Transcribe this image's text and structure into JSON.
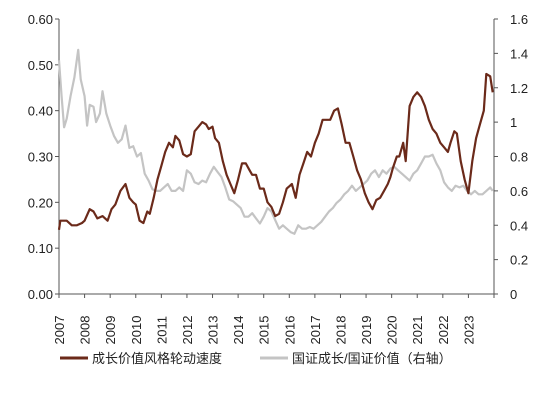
{
  "chart_data": {
    "type": "line",
    "title": "",
    "x_ticks": [
      "2007",
      "2008",
      "2009",
      "2010",
      "2011",
      "2012",
      "2013",
      "2014",
      "2015",
      "2016",
      "2017",
      "2018",
      "2019",
      "2020",
      "2021",
      "2022",
      "2023"
    ],
    "left_axis": {
      "ylim": [
        0,
        0.6
      ],
      "ticks": [
        "0.00",
        "0.10",
        "0.20",
        "0.30",
        "0.40",
        "0.50",
        "0.60"
      ]
    },
    "right_axis": {
      "ylim": [
        0,
        1.6
      ],
      "ticks": [
        "0",
        "0.2",
        "0.4",
        "0.6",
        "0.8",
        "1",
        "1.2",
        "1.4",
        "1.6"
      ]
    },
    "grid": false,
    "legend_position": "bottom",
    "series": [
      {
        "name": "成长价值风格轮动速度",
        "axis": "left",
        "color": "#6b2a1a",
        "x": [
          2007.0,
          2007.05,
          2007.1,
          2007.3,
          2007.5,
          2007.7,
          2007.9,
          2008.0,
          2008.2,
          2008.35,
          2008.5,
          2008.7,
          2008.9,
          2009.05,
          2009.2,
          2009.4,
          2009.6,
          2009.75,
          2009.9,
          2010.0,
          2010.15,
          2010.3,
          2010.45,
          2010.55,
          2010.7,
          2010.85,
          2011.0,
          2011.15,
          2011.3,
          2011.45,
          2011.55,
          2011.7,
          2011.85,
          2012.0,
          2012.15,
          2012.3,
          2012.45,
          2012.6,
          2012.75,
          2012.85,
          2013.0,
          2013.1,
          2013.25,
          2013.4,
          2013.55,
          2013.7,
          2013.85,
          2014.0,
          2014.15,
          2014.3,
          2014.45,
          2014.55,
          2014.7,
          2014.85,
          2015.0,
          2015.15,
          2015.3,
          2015.45,
          2015.6,
          2015.75,
          2015.9,
          2016.0,
          2016.1,
          2016.25,
          2016.4,
          2016.55,
          2016.7,
          2016.85,
          2017.0,
          2017.15,
          2017.3,
          2017.45,
          2017.6,
          2017.75,
          2017.9,
          2018.05,
          2018.2,
          2018.35,
          2018.5,
          2018.65,
          2018.8,
          2018.95,
          2019.1,
          2019.25,
          2019.4,
          2019.55,
          2019.7,
          2019.85,
          2019.95,
          2020.05,
          2020.2,
          2020.3,
          2020.45,
          2020.55,
          2020.7,
          2020.85,
          2021.0,
          2021.15,
          2021.3,
          2021.45,
          2021.6,
          2021.75,
          2021.9,
          2022.05,
          2022.2,
          2022.3,
          2022.45,
          2022.55,
          2022.7,
          2022.85,
          2023.0,
          2023.15,
          2023.3,
          2023.45,
          2023.6,
          2023.7,
          2023.85,
          2023.95
        ],
        "y": [
          0.14,
          0.16,
          0.16,
          0.16,
          0.15,
          0.15,
          0.155,
          0.16,
          0.185,
          0.18,
          0.165,
          0.17,
          0.16,
          0.185,
          0.195,
          0.225,
          0.24,
          0.21,
          0.2,
          0.195,
          0.16,
          0.155,
          0.18,
          0.175,
          0.21,
          0.25,
          0.28,
          0.31,
          0.33,
          0.32,
          0.345,
          0.335,
          0.305,
          0.3,
          0.305,
          0.355,
          0.365,
          0.375,
          0.37,
          0.36,
          0.365,
          0.34,
          0.33,
          0.29,
          0.26,
          0.24,
          0.22,
          0.25,
          0.285,
          0.285,
          0.27,
          0.26,
          0.26,
          0.23,
          0.23,
          0.2,
          0.19,
          0.17,
          0.175,
          0.2,
          0.23,
          0.235,
          0.24,
          0.21,
          0.26,
          0.285,
          0.31,
          0.3,
          0.33,
          0.35,
          0.38,
          0.38,
          0.38,
          0.4,
          0.405,
          0.37,
          0.33,
          0.33,
          0.3,
          0.27,
          0.25,
          0.22,
          0.2,
          0.185,
          0.205,
          0.21,
          0.225,
          0.24,
          0.255,
          0.275,
          0.3,
          0.3,
          0.33,
          0.29,
          0.41,
          0.43,
          0.44,
          0.43,
          0.41,
          0.38,
          0.36,
          0.35,
          0.33,
          0.32,
          0.31,
          0.33,
          0.355,
          0.35,
          0.29,
          0.25,
          0.22,
          0.29,
          0.34,
          0.37,
          0.4,
          0.48,
          0.475,
          0.44
        ]
      },
      {
        "name": "国证成长/国证价值（右轴）",
        "axis": "right",
        "color": "#c4c4c4",
        "x": [
          2007.0,
          2007.1,
          2007.2,
          2007.3,
          2007.45,
          2007.6,
          2007.75,
          2007.85,
          2008.0,
          2008.1,
          2008.2,
          2008.35,
          2008.45,
          2008.6,
          2008.7,
          2008.85,
          2009.0,
          2009.15,
          2009.3,
          2009.45,
          2009.6,
          2009.75,
          2009.9,
          2010.05,
          2010.2,
          2010.35,
          2010.5,
          2010.65,
          2010.8,
          2010.95,
          2011.1,
          2011.25,
          2011.4,
          2011.55,
          2011.7,
          2011.85,
          2012.0,
          2012.15,
          2012.3,
          2012.45,
          2012.6,
          2012.75,
          2012.9,
          2013.05,
          2013.2,
          2013.35,
          2013.5,
          2013.65,
          2013.8,
          2013.95,
          2014.1,
          2014.25,
          2014.4,
          2014.55,
          2014.7,
          2014.85,
          2015.0,
          2015.15,
          2015.3,
          2015.45,
          2015.6,
          2015.75,
          2015.9,
          2016.05,
          2016.2,
          2016.35,
          2016.5,
          2016.65,
          2016.8,
          2016.95,
          2017.1,
          2017.25,
          2017.4,
          2017.55,
          2017.7,
          2017.85,
          2018.0,
          2018.15,
          2018.3,
          2018.45,
          2018.6,
          2018.75,
          2018.9,
          2019.05,
          2019.2,
          2019.35,
          2019.5,
          2019.65,
          2019.8,
          2019.95,
          2020.1,
          2020.25,
          2020.4,
          2020.55,
          2020.7,
          2020.85,
          2021.0,
          2021.15,
          2021.3,
          2021.45,
          2021.6,
          2021.75,
          2021.9,
          2022.05,
          2022.2,
          2022.35,
          2022.5,
          2022.65,
          2022.8,
          2022.95,
          2023.1,
          2023.25,
          2023.4,
          2023.55,
          2023.7,
          2023.85,
          2023.95
        ],
        "y": [
          1.36,
          1.15,
          0.97,
          1.02,
          1.15,
          1.26,
          1.42,
          1.25,
          1.15,
          0.98,
          1.1,
          1.09,
          1.0,
          1.05,
          1.18,
          1.05,
          0.98,
          0.92,
          0.88,
          0.9,
          0.98,
          0.85,
          0.86,
          0.8,
          0.82,
          0.7,
          0.66,
          0.61,
          0.6,
          0.6,
          0.62,
          0.64,
          0.6,
          0.6,
          0.62,
          0.6,
          0.72,
          0.7,
          0.65,
          0.64,
          0.66,
          0.65,
          0.7,
          0.74,
          0.71,
          0.68,
          0.62,
          0.55,
          0.54,
          0.52,
          0.5,
          0.45,
          0.45,
          0.47,
          0.44,
          0.41,
          0.45,
          0.5,
          0.48,
          0.43,
          0.38,
          0.4,
          0.38,
          0.36,
          0.35,
          0.4,
          0.38,
          0.38,
          0.39,
          0.38,
          0.4,
          0.42,
          0.45,
          0.48,
          0.5,
          0.53,
          0.55,
          0.58,
          0.6,
          0.63,
          0.6,
          0.62,
          0.64,
          0.66,
          0.7,
          0.72,
          0.68,
          0.72,
          0.7,
          0.73,
          0.74,
          0.72,
          0.7,
          0.68,
          0.66,
          0.7,
          0.72,
          0.76,
          0.8,
          0.8,
          0.81,
          0.76,
          0.72,
          0.65,
          0.62,
          0.6,
          0.63,
          0.62,
          0.63,
          0.6,
          0.58,
          0.6,
          0.58,
          0.58,
          0.6,
          0.62,
          0.6
        ]
      }
    ]
  }
}
